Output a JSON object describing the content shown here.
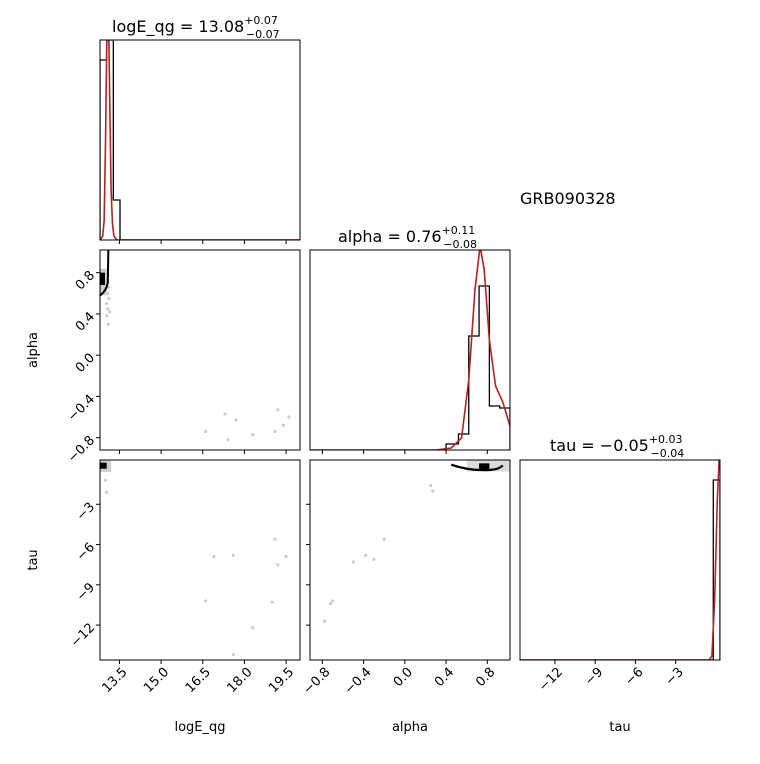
{
  "annotation": "GRB090328",
  "colors": {
    "hist": "#000000",
    "kde": "#b22222",
    "scatter": "#000000"
  },
  "chart_data": {
    "type": "corner",
    "parameters": [
      "logE_qg",
      "alpha",
      "tau"
    ],
    "ranges": {
      "logE_qg": [
        12.8,
        20.0
      ],
      "alpha": [
        -0.92,
        1.02
      ],
      "tau": [
        -14.6,
        0.3
      ]
    },
    "ticks": {
      "logE_qg": {
        "values": [
          13.5,
          15.0,
          16.5,
          18.0,
          19.5
        ],
        "labels": [
          "13.5",
          "15.0",
          "16.5",
          "18.0",
          "19.5"
        ]
      },
      "alpha": {
        "values": [
          -0.8,
          -0.4,
          0.0,
          0.4,
          0.8
        ],
        "labels": [
          "−0.8",
          "−0.4",
          "0.0",
          "0.4",
          "0.8"
        ]
      },
      "tau": {
        "values": [
          -12,
          -9,
          -6,
          -3
        ],
        "labels": [
          "−12",
          "−9",
          "−6",
          "−3"
        ]
      }
    },
    "titles": [
      {
        "param": "logE_qg",
        "base": "logE_qg = 13.08",
        "plus": "+0.07",
        "minus": "−0.07"
      },
      {
        "param": "alpha",
        "base": "alpha = 0.76",
        "plus": "+0.11",
        "minus": "−0.08"
      },
      {
        "param": "tau",
        "base": "tau = −0.05",
        "plus": "+0.03",
        "minus": "−0.04"
      }
    ],
    "axis_labels": {
      "logE_qg": "logE_qg",
      "alpha": "alpha",
      "tau": "tau"
    },
    "histograms": {
      "logE_qg": {
        "edges": [
          12.8,
          13.04,
          13.28,
          13.52,
          13.76,
          20.0
        ],
        "heights": [
          0.9,
          1.0,
          0.2,
          0.0,
          0.0
        ],
        "ylim": [
          0,
          1.0
        ],
        "kde_x": [
          12.8,
          12.9,
          12.95,
          13.0,
          13.04,
          13.08,
          13.12,
          13.16,
          13.2,
          13.25,
          13.3,
          13.4,
          13.6,
          14.0,
          20.0
        ],
        "kde_y": [
          0.0,
          0.02,
          0.1,
          0.5,
          0.95,
          1.15,
          1.0,
          0.6,
          0.25,
          0.08,
          0.02,
          0.0,
          0.0,
          0.0,
          0.0
        ]
      },
      "alpha": {
        "edges": [
          0.4,
          0.52,
          0.62,
          0.72,
          0.82,
          0.92,
          1.02
        ],
        "heights": [
          0.03,
          0.08,
          0.57,
          0.82,
          0.22,
          0.21
        ],
        "ylim": [
          0,
          1.0
        ],
        "kde_x": [
          -0.92,
          0.3,
          0.45,
          0.55,
          0.62,
          0.68,
          0.73,
          0.77,
          0.82,
          0.88,
          0.95,
          1.02
        ],
        "kde_y": [
          0.0,
          0.0,
          0.01,
          0.06,
          0.35,
          0.8,
          1.02,
          0.9,
          0.55,
          0.32,
          0.24,
          0.12
        ]
      },
      "tau": {
        "edges": [
          -14.6,
          -0.2,
          0.3
        ],
        "heights": [
          0.0,
          0.9
        ],
        "ylim": [
          0,
          1.0
        ],
        "kde_x": [
          -14.6,
          -1.0,
          -0.5,
          -0.3,
          -0.1,
          0.1,
          0.3
        ],
        "kde_y": [
          0.0,
          0.0,
          0.0,
          0.02,
          0.3,
          0.8,
          1.1
        ]
      }
    },
    "scatter": {
      "alpha_vs_logE_qg": [
        [
          13.02,
          0.72
        ],
        [
          13.05,
          0.69
        ],
        [
          13.1,
          0.66
        ],
        [
          13.07,
          0.6
        ],
        [
          13.12,
          0.55
        ],
        [
          13.03,
          0.5
        ],
        [
          13.08,
          0.45
        ],
        [
          13.15,
          0.42
        ],
        [
          13.05,
          0.38
        ],
        [
          13.1,
          0.3
        ],
        [
          16.6,
          -0.74
        ],
        [
          17.3,
          -0.57
        ],
        [
          17.7,
          -0.63
        ],
        [
          17.4,
          -0.82
        ],
        [
          18.3,
          -0.77
        ],
        [
          19.2,
          -0.53
        ],
        [
          19.6,
          -0.6
        ],
        [
          19.4,
          -0.68
        ],
        [
          19.1,
          -0.74
        ]
      ],
      "tau_vs_logE_qg": [
        [
          13.0,
          -1.2
        ],
        [
          13.04,
          -2.1
        ],
        [
          16.6,
          -10.2
        ],
        [
          16.9,
          -6.9
        ],
        [
          17.6,
          -6.8
        ],
        [
          18.3,
          -12.2
        ],
        [
          17.6,
          -14.2
        ],
        [
          19.1,
          -5.6
        ],
        [
          19.2,
          -7.5
        ],
        [
          19.5,
          -6.9
        ],
        [
          19.0,
          -10.3
        ]
      ],
      "tau_vs_alpha": [
        [
          0.25,
          -1.6
        ],
        [
          0.27,
          -2.0
        ],
        [
          -0.2,
          -5.6
        ],
        [
          -0.5,
          -7.3
        ],
        [
          -0.38,
          -6.8
        ],
        [
          -0.3,
          -7.1
        ],
        [
          -0.7,
          -10.2
        ],
        [
          -0.72,
          -10.4
        ],
        [
          -0.78,
          -11.7
        ]
      ]
    }
  }
}
